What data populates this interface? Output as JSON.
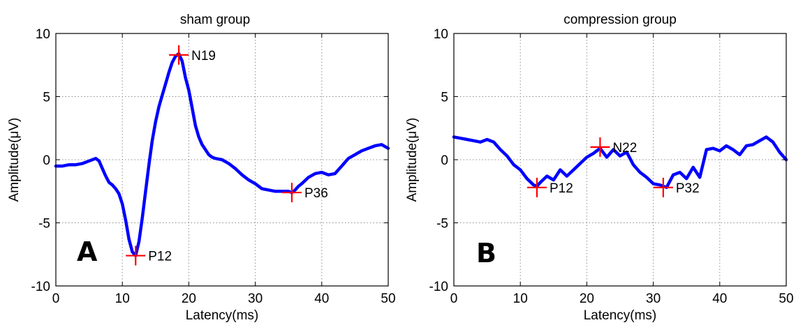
{
  "chart_data": [
    {
      "type": "line",
      "panel_label": "A",
      "title": "sham group",
      "xlabel": "Latency(ms)",
      "ylabel": "Amplitude(μV)",
      "xlim": [
        0,
        50
      ],
      "ylim": [
        -10,
        10
      ],
      "x_ticks": [
        0,
        10,
        20,
        30,
        40,
        50
      ],
      "y_ticks": [
        -10,
        -5,
        0,
        5,
        10
      ],
      "grid": true,
      "line_color": "#0000ff",
      "marker_color": "#ff0000",
      "series": [
        {
          "x": [
            0,
            1,
            2,
            3,
            4,
            5,
            6,
            6.5,
            7,
            7.5,
            8,
            8.5,
            9,
            9.5,
            10,
            10.5,
            11,
            11.5,
            12,
            12.5,
            13,
            13.5,
            14,
            14.5,
            15,
            15.5,
            16,
            16.5,
            17,
            17.5,
            18,
            18.5,
            19,
            19.5,
            20,
            20.5,
            21,
            21.5,
            22,
            22.5,
            23,
            23.5,
            24,
            25,
            26,
            27,
            28,
            29,
            30,
            31,
            32,
            33,
            34,
            35,
            35.5,
            36,
            36.5,
            37,
            38,
            39,
            40,
            41,
            42,
            43,
            44,
            45,
            46,
            47,
            48,
            49,
            50
          ],
          "y": [
            -0.5,
            -0.5,
            -0.4,
            -0.4,
            -0.3,
            -0.1,
            0.1,
            -0.1,
            -0.7,
            -1.3,
            -1.8,
            -2.0,
            -2.3,
            -2.7,
            -3.5,
            -4.8,
            -6.3,
            -7.3,
            -7.6,
            -6.5,
            -4.6,
            -2.5,
            -0.4,
            1.5,
            3.0,
            4.2,
            5.1,
            6.0,
            6.9,
            7.7,
            8.2,
            8.4,
            7.8,
            6.5,
            5.5,
            4.1,
            2.7,
            1.8,
            1.2,
            0.8,
            0.4,
            0.2,
            0.1,
            0.0,
            -0.3,
            -0.7,
            -1.2,
            -1.6,
            -1.9,
            -2.3,
            -2.4,
            -2.5,
            -2.5,
            -2.5,
            -2.6,
            -2.4,
            -2.1,
            -1.9,
            -1.4,
            -1.1,
            -1.0,
            -1.2,
            -1.1,
            -0.5,
            0.1,
            0.4,
            0.7,
            0.9,
            1.1,
            1.2,
            0.9
          ]
        }
      ],
      "annotations": [
        {
          "label": "N19",
          "x": 18.5,
          "y": 8.3,
          "label_side": "right"
        },
        {
          "label": "P12",
          "x": 12.0,
          "y": -7.6,
          "label_side": "right"
        },
        {
          "label": "P36",
          "x": 35.5,
          "y": -2.6,
          "label_side": "right"
        }
      ]
    },
    {
      "type": "line",
      "panel_label": "B",
      "title": "compression group",
      "xlabel": "Latency(ms)",
      "ylabel": "Amplitude(μV)",
      "xlim": [
        0,
        50
      ],
      "ylim": [
        -10,
        10
      ],
      "x_ticks": [
        0,
        10,
        20,
        30,
        40,
        50
      ],
      "y_ticks": [
        -10,
        -5,
        0,
        5,
        10
      ],
      "grid": true,
      "line_color": "#0000ff",
      "marker_color": "#ff0000",
      "series": [
        {
          "x": [
            0,
            1,
            2,
            3,
            4,
            5,
            6,
            7,
            8,
            9,
            10,
            11,
            12,
            12.5,
            13,
            14,
            15,
            16,
            17,
            18,
            19,
            20,
            21,
            22,
            23,
            24,
            25,
            26,
            27,
            28,
            29,
            30,
            31,
            32,
            33,
            34,
            35,
            36,
            37,
            38,
            39,
            40,
            41,
            42,
            43,
            44,
            45,
            46,
            47,
            48,
            49,
            50
          ],
          "y": [
            1.8,
            1.7,
            1.6,
            1.5,
            1.4,
            1.6,
            1.4,
            0.8,
            0.3,
            -0.4,
            -0.8,
            -1.5,
            -2.0,
            -2.1,
            -1.8,
            -1.3,
            -1.6,
            -0.8,
            -1.3,
            -0.8,
            -0.3,
            0.2,
            0.5,
            0.9,
            0.2,
            0.8,
            0.3,
            0.6,
            -0.4,
            -1.0,
            -1.4,
            -1.9,
            -2.0,
            -2.2,
            -1.2,
            -1.0,
            -1.5,
            -0.6,
            -1.4,
            0.8,
            0.9,
            0.7,
            1.1,
            0.8,
            0.4,
            1.1,
            1.2,
            1.5,
            1.8,
            1.4,
            0.6,
            0.0
          ]
        }
      ],
      "annotations": [
        {
          "label": "N22",
          "x": 22.0,
          "y": 1.0,
          "label_side": "right"
        },
        {
          "label": "P12",
          "x": 12.5,
          "y": -2.2,
          "label_side": "right"
        },
        {
          "label": "P32",
          "x": 31.5,
          "y": -2.2,
          "label_side": "right"
        }
      ]
    }
  ]
}
